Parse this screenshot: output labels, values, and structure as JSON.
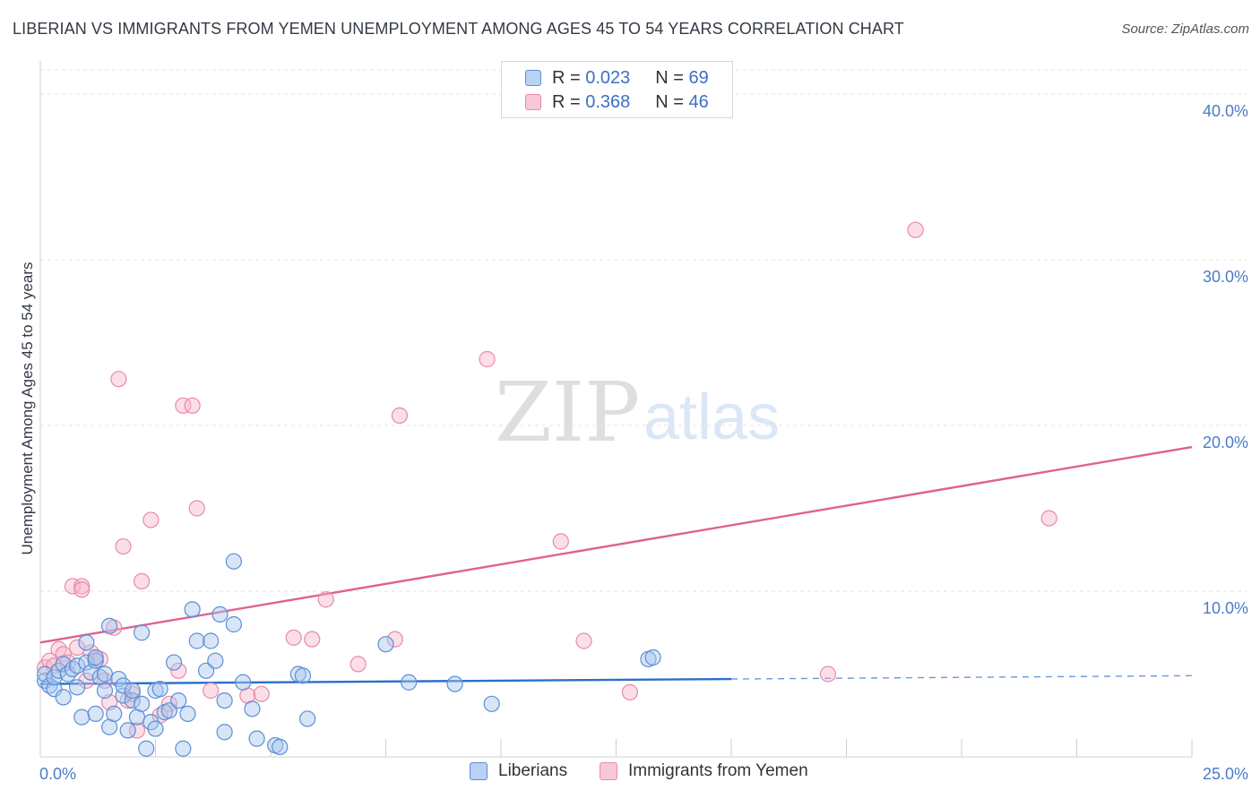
{
  "title": "LIBERIAN VS IMMIGRANTS FROM YEMEN UNEMPLOYMENT AMONG AGES 45 TO 54 YEARS CORRELATION CHART",
  "source": "Source: ZipAtlas.com",
  "watermark": {
    "zip": "ZIP",
    "atlas": "atlas"
  },
  "legend": {
    "rows": [
      {
        "r_label": "R = ",
        "r_value": "0.023",
        "n_label": "N = ",
        "n_value": "69"
      },
      {
        "r_label": "R = ",
        "r_value": "0.368",
        "n_label": "N = ",
        "n_value": "46"
      }
    ]
  },
  "bottom_legend": {
    "series1": "Liberians",
    "series2": "Immigrants from Yemen"
  },
  "colors": {
    "series1_fill": "#a9c6ee",
    "series1_stroke": "#5b8fd6",
    "series1_line": "#2a6fcc",
    "series2_fill": "#f6b9cc",
    "series2_stroke": "#e889a8",
    "series2_line": "#e0628e",
    "grid": "#e3e3e3",
    "tick_text": "#4a7cc7"
  },
  "chart_data": {
    "type": "scatter",
    "title": "LIBERIAN VS IMMIGRANTS FROM YEMEN UNEMPLOYMENT AMONG AGES 45 TO 54 YEARS CORRELATION CHART",
    "xlabel": "",
    "ylabel": "Unemployment Among Ages 45 to 54 years",
    "xlim": [
      0,
      25
    ],
    "ylim": [
      0,
      42
    ],
    "x_tick_labels": [
      "0.0%",
      "25.0%"
    ],
    "y_ticks": [
      10,
      20,
      30,
      40
    ],
    "y_tick_labels": [
      "10.0%",
      "20.0%",
      "30.0%",
      "40.0%"
    ],
    "grid": true,
    "series": [
      {
        "name": "Liberians",
        "r": 0.023,
        "n": 69,
        "trend": {
          "x_start": 0,
          "y_start": 4.4,
          "x_end": 15,
          "y_end": 4.7,
          "x_dash_end": 25,
          "y_dash_end": 4.9
        },
        "points": [
          [
            0.1,
            4.6
          ],
          [
            0.1,
            5.0
          ],
          [
            0.2,
            4.3
          ],
          [
            0.3,
            4.1
          ],
          [
            0.3,
            4.8
          ],
          [
            0.4,
            5.2
          ],
          [
            0.5,
            3.6
          ],
          [
            0.5,
            5.6
          ],
          [
            0.6,
            5.0
          ],
          [
            0.7,
            5.3
          ],
          [
            0.8,
            4.2
          ],
          [
            0.8,
            5.5
          ],
          [
            0.9,
            2.4
          ],
          [
            1.0,
            5.7
          ],
          [
            1.0,
            6.9
          ],
          [
            1.1,
            5.1
          ],
          [
            1.2,
            5.8
          ],
          [
            1.2,
            6.0
          ],
          [
            1.2,
            2.6
          ],
          [
            1.3,
            4.8
          ],
          [
            1.4,
            5.0
          ],
          [
            1.4,
            4.0
          ],
          [
            1.5,
            7.9
          ],
          [
            1.5,
            1.8
          ],
          [
            1.6,
            2.6
          ],
          [
            1.7,
            4.7
          ],
          [
            1.8,
            3.7
          ],
          [
            1.8,
            4.3
          ],
          [
            1.9,
            1.6
          ],
          [
            2.0,
            3.4
          ],
          [
            2.0,
            4.0
          ],
          [
            2.1,
            2.4
          ],
          [
            2.2,
            3.2
          ],
          [
            2.2,
            7.5
          ],
          [
            2.3,
            0.5
          ],
          [
            2.4,
            2.1
          ],
          [
            2.5,
            1.7
          ],
          [
            2.5,
            4.0
          ],
          [
            2.6,
            4.1
          ],
          [
            2.7,
            2.7
          ],
          [
            2.8,
            2.8
          ],
          [
            2.9,
            5.7
          ],
          [
            3.0,
            3.4
          ],
          [
            3.1,
            0.5
          ],
          [
            3.2,
            2.6
          ],
          [
            3.3,
            8.9
          ],
          [
            3.4,
            7.0
          ],
          [
            3.6,
            5.2
          ],
          [
            3.7,
            7.0
          ],
          [
            3.8,
            5.8
          ],
          [
            3.9,
            8.6
          ],
          [
            4.0,
            3.4
          ],
          [
            4.0,
            1.5
          ],
          [
            4.2,
            8.0
          ],
          [
            4.2,
            11.8
          ],
          [
            4.4,
            4.5
          ],
          [
            4.6,
            2.9
          ],
          [
            4.7,
            1.1
          ],
          [
            5.1,
            0.7
          ],
          [
            5.2,
            0.6
          ],
          [
            5.6,
            5.0
          ],
          [
            5.7,
            4.9
          ],
          [
            5.8,
            2.3
          ],
          [
            7.5,
            6.8
          ],
          [
            8.0,
            4.5
          ],
          [
            9.0,
            4.4
          ],
          [
            9.8,
            3.2
          ],
          [
            13.2,
            5.9
          ],
          [
            13.3,
            6.0
          ]
        ]
      },
      {
        "name": "Immigrants from Yemen",
        "r": 0.368,
        "n": 46,
        "trend": {
          "x_start": 0,
          "y_start": 6.9,
          "x_end": 25,
          "y_end": 18.7
        },
        "points": [
          [
            0.1,
            5.4
          ],
          [
            0.2,
            5.8
          ],
          [
            0.3,
            5.5
          ],
          [
            0.4,
            6.5
          ],
          [
            0.5,
            6.2
          ],
          [
            0.6,
            5.7
          ],
          [
            0.7,
            10.3
          ],
          [
            0.8,
            6.6
          ],
          [
            0.9,
            10.3
          ],
          [
            0.9,
            10.1
          ],
          [
            1.0,
            4.6
          ],
          [
            1.1,
            6.3
          ],
          [
            1.2,
            6.0
          ],
          [
            1.3,
            5.9
          ],
          [
            1.4,
            4.6
          ],
          [
            1.5,
            3.3
          ],
          [
            1.6,
            7.8
          ],
          [
            1.7,
            22.8
          ],
          [
            1.8,
            12.7
          ],
          [
            1.9,
            3.4
          ],
          [
            2.0,
            3.8
          ],
          [
            2.1,
            1.6
          ],
          [
            2.2,
            10.6
          ],
          [
            2.4,
            14.3
          ],
          [
            2.6,
            2.5
          ],
          [
            2.8,
            3.2
          ],
          [
            3.0,
            5.2
          ],
          [
            3.1,
            21.2
          ],
          [
            3.3,
            21.2
          ],
          [
            3.4,
            15.0
          ],
          [
            3.7,
            4.0
          ],
          [
            4.5,
            3.7
          ],
          [
            4.8,
            3.8
          ],
          [
            5.5,
            7.2
          ],
          [
            5.9,
            7.1
          ],
          [
            6.2,
            9.5
          ],
          [
            6.9,
            5.6
          ],
          [
            7.7,
            7.1
          ],
          [
            7.8,
            20.6
          ],
          [
            9.7,
            24.0
          ],
          [
            11.3,
            13.0
          ],
          [
            11.8,
            7.0
          ],
          [
            12.8,
            3.9
          ],
          [
            17.1,
            5.0
          ],
          [
            19.0,
            31.8
          ],
          [
            21.9,
            14.4
          ]
        ]
      }
    ]
  }
}
